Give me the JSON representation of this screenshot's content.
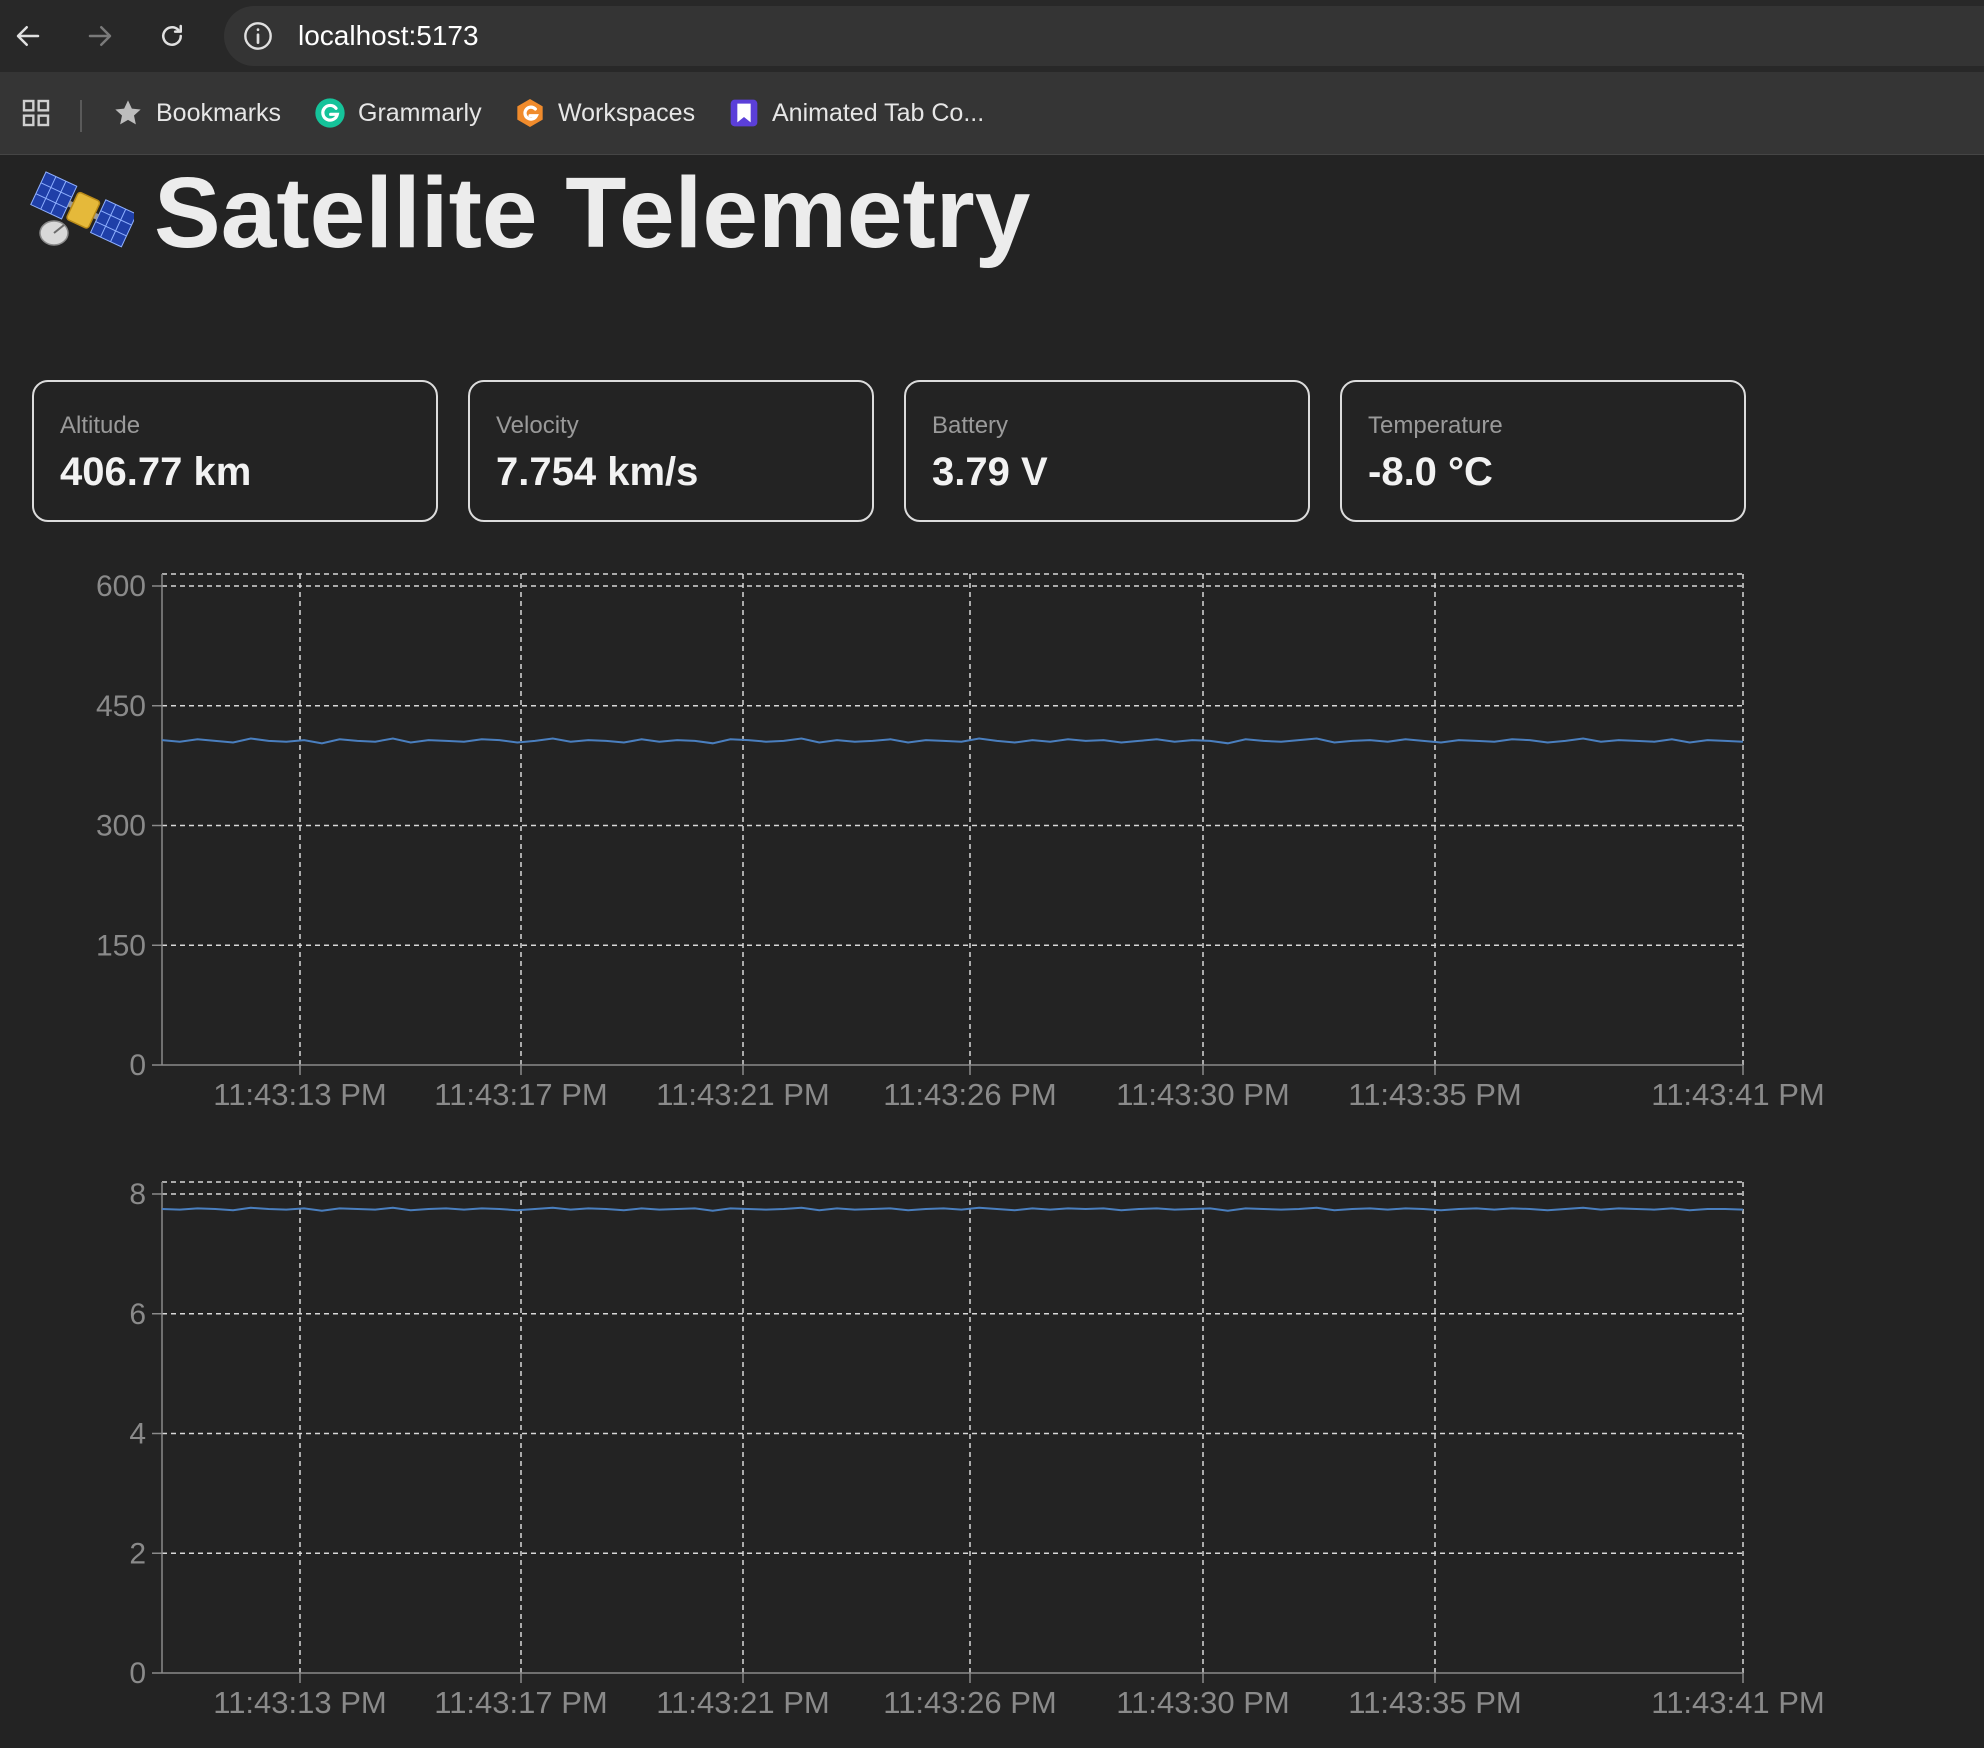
{
  "browser": {
    "url": "localhost:5173",
    "bookmarks": [
      {
        "label": "Bookmarks",
        "icon": "star-icon"
      },
      {
        "label": "Grammarly",
        "icon": "grammarly-icon"
      },
      {
        "label": "Workspaces",
        "icon": "workspaces-icon"
      },
      {
        "label": "Animated Tab Co...",
        "icon": "animated-tab-icon"
      }
    ]
  },
  "page": {
    "title": "Satellite Telemetry",
    "title_icon": "satellite-icon"
  },
  "metrics": [
    {
      "label": "Altitude",
      "value": "406.77 km"
    },
    {
      "label": "Velocity",
      "value": "7.754 km/s"
    },
    {
      "label": "Battery",
      "value": "3.79 V"
    },
    {
      "label": "Temperature",
      "value": "-8.0 °C"
    }
  ],
  "colors": {
    "background": "#232323",
    "line": "#4a7fbf",
    "grid": "#d8d8d8",
    "axis_text": "#8a8a8a"
  },
  "chart_data": [
    {
      "type": "line",
      "x_ticks": [
        "11:43:13 PM",
        "11:43:17 PM",
        "11:43:21 PM",
        "11:43:26 PM",
        "11:43:30 PM",
        "11:43:35 PM",
        "11:43:41 PM"
      ],
      "y_ticks": [
        0,
        150,
        300,
        450,
        600
      ],
      "ylim": [
        0,
        600
      ],
      "grid": true,
      "series": [
        {
          "values": [
            407,
            405,
            408,
            406,
            404,
            409,
            406,
            405,
            407,
            403,
            408,
            406,
            405,
            409,
            404,
            407,
            406,
            405,
            408,
            407,
            404,
            406,
            409,
            405,
            407,
            406,
            404,
            408,
            405,
            407,
            406,
            403,
            408,
            407,
            405,
            406,
            409,
            404,
            407,
            405,
            406,
            408,
            404,
            407,
            406,
            405,
            409,
            406,
            404,
            407,
            405,
            408,
            406,
            407,
            404,
            406,
            408,
            405,
            407,
            406,
            403,
            408,
            406,
            405,
            407,
            409,
            404,
            406,
            407,
            405,
            408,
            406,
            404,
            407,
            406,
            405,
            408,
            407,
            404,
            406,
            409,
            405,
            407,
            406,
            405,
            408,
            404,
            407,
            406,
            405
          ]
        }
      ]
    },
    {
      "type": "line",
      "x_ticks": [
        "11:43:13 PM",
        "11:43:17 PM",
        "11:43:21 PM",
        "11:43:26 PM",
        "11:43:30 PM",
        "11:43:35 PM",
        "11:43:41 PM"
      ],
      "y_ticks": [
        0,
        2,
        4,
        6,
        8
      ],
      "ylim": [
        0,
        8
      ],
      "grid": true,
      "series": [
        {
          "values": [
            7.75,
            7.74,
            7.76,
            7.75,
            7.73,
            7.77,
            7.75,
            7.74,
            7.76,
            7.72,
            7.76,
            7.75,
            7.74,
            7.77,
            7.73,
            7.75,
            7.76,
            7.74,
            7.76,
            7.75,
            7.73,
            7.75,
            7.77,
            7.74,
            7.76,
            7.75,
            7.73,
            7.76,
            7.74,
            7.75,
            7.76,
            7.72,
            7.76,
            7.75,
            7.74,
            7.75,
            7.77,
            7.73,
            7.76,
            7.74,
            7.75,
            7.76,
            7.73,
            7.75,
            7.76,
            7.74,
            7.77,
            7.75,
            7.73,
            7.76,
            7.74,
            7.76,
            7.75,
            7.76,
            7.73,
            7.75,
            7.76,
            7.74,
            7.75,
            7.76,
            7.72,
            7.76,
            7.75,
            7.74,
            7.75,
            7.77,
            7.73,
            7.75,
            7.76,
            7.74,
            7.76,
            7.75,
            7.73,
            7.75,
            7.76,
            7.74,
            7.76,
            7.75,
            7.73,
            7.75,
            7.77,
            7.74,
            7.76,
            7.75,
            7.74,
            7.76,
            7.73,
            7.75,
            7.75,
            7.74
          ]
        }
      ]
    }
  ]
}
